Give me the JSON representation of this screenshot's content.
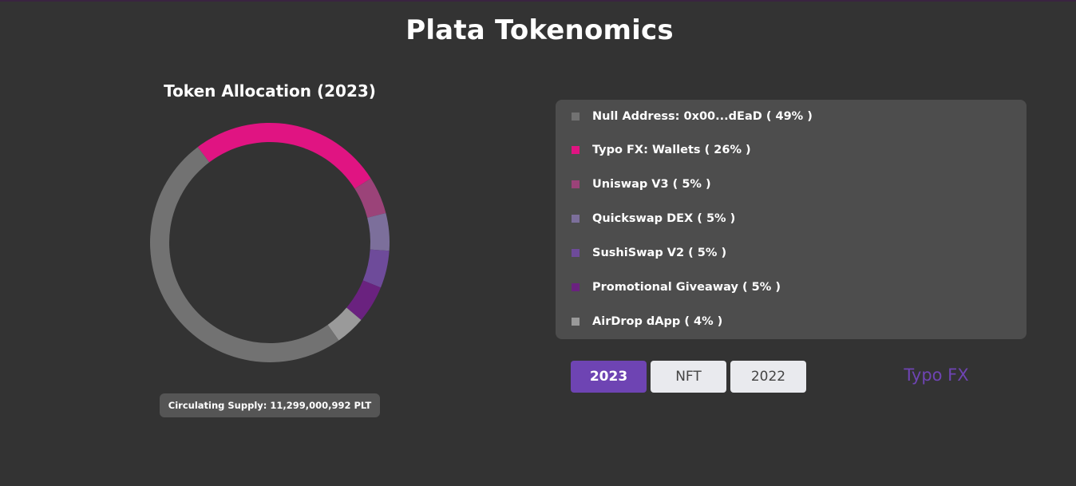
{
  "page": {
    "title": "Plata Tokenomics"
  },
  "chart_data": {
    "type": "pie",
    "variant": "donut",
    "title": "Token Allocation (2023)",
    "start_angle_deg": -37,
    "slices": [
      {
        "label": "Typo FX: Wallets",
        "value": 26,
        "color": "#e01482"
      },
      {
        "label": "Uniswap V3",
        "value": 5,
        "color": "#9b4379"
      },
      {
        "label": "Quickswap DEX",
        "value": 5,
        "color": "#7c6f9b"
      },
      {
        "label": "SushiSwap V2",
        "value": 5,
        "color": "#6e4b9a"
      },
      {
        "label": "Promotional Giveaway",
        "value": 5,
        "color": "#6a227f"
      },
      {
        "label": "AirDrop dApp",
        "value": 4,
        "color": "#9a9a9a"
      },
      {
        "label": "Null Address: 0x00...dEaD",
        "value": 49,
        "color": "#727272"
      }
    ]
  },
  "supply_badge": {
    "text": "Circulating Supply: 11,299,000,992 PLT"
  },
  "legend": {
    "items": [
      {
        "label": "Null Address: 0x00...dEaD ( 49% )",
        "color": "#727272"
      },
      {
        "label": "Typo FX: Wallets ( 26% )",
        "color": "#e01482"
      },
      {
        "label": "Uniswap V3 ( 5% )",
        "color": "#9b4379"
      },
      {
        "label": "Quickswap DEX ( 5% )",
        "color": "#7c6f9b"
      },
      {
        "label": "SushiSwap V2 ( 5% )",
        "color": "#6e4b9a"
      },
      {
        "label": "Promotional Giveaway ( 5% )",
        "color": "#6a227f"
      },
      {
        "label": "AirDrop dApp ( 4% )",
        "color": "#9a9a9a"
      }
    ]
  },
  "tabs": [
    {
      "label": "2023",
      "active": true
    },
    {
      "label": "NFT",
      "active": false
    },
    {
      "label": "2022",
      "active": false
    }
  ],
  "brand": {
    "label": "Typo FX",
    "color": "#6e44b3"
  },
  "colors": {
    "background": "#333333",
    "panel": "#4d4d4d",
    "accent": "#6e44b3"
  }
}
